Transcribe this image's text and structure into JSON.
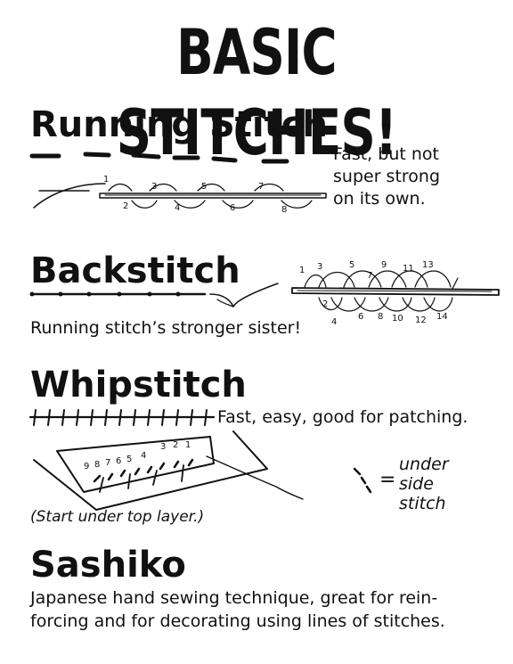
{
  "title": "BASIC STITCHES!",
  "sections": {
    "running": {
      "heading": "Running Stitch",
      "note": [
        "Fast, but not",
        "super strong",
        "on its own."
      ],
      "top_numbers": [
        "1",
        "3",
        "5",
        "7"
      ],
      "bottom_numbers": [
        "2",
        "4",
        "6",
        "8"
      ]
    },
    "back": {
      "heading": "Backstitch",
      "note": "Running stitch’s stronger sister!",
      "top_numbers": [
        "1",
        "3",
        "5",
        "7",
        "9",
        "11",
        "13"
      ],
      "bottom_numbers": [
        "2",
        "4",
        "6",
        "8",
        "10",
        "12",
        "14"
      ]
    },
    "whip": {
      "heading": "Whipstitch",
      "note": "Fast, easy, good for patching.",
      "diagram_numbers": [
        "9",
        "8",
        "7",
        "6",
        "5",
        "4",
        "3",
        "2",
        "1"
      ],
      "equals": "=",
      "legend": [
        "under",
        "side",
        "stitch"
      ],
      "caption": "(Start under top layer.)"
    },
    "sashiko": {
      "heading": "Sashiko",
      "text": [
        "Japanese hand sewing technique, great for rein-",
        "forcing and for decorating using lines of stitches."
      ]
    }
  }
}
